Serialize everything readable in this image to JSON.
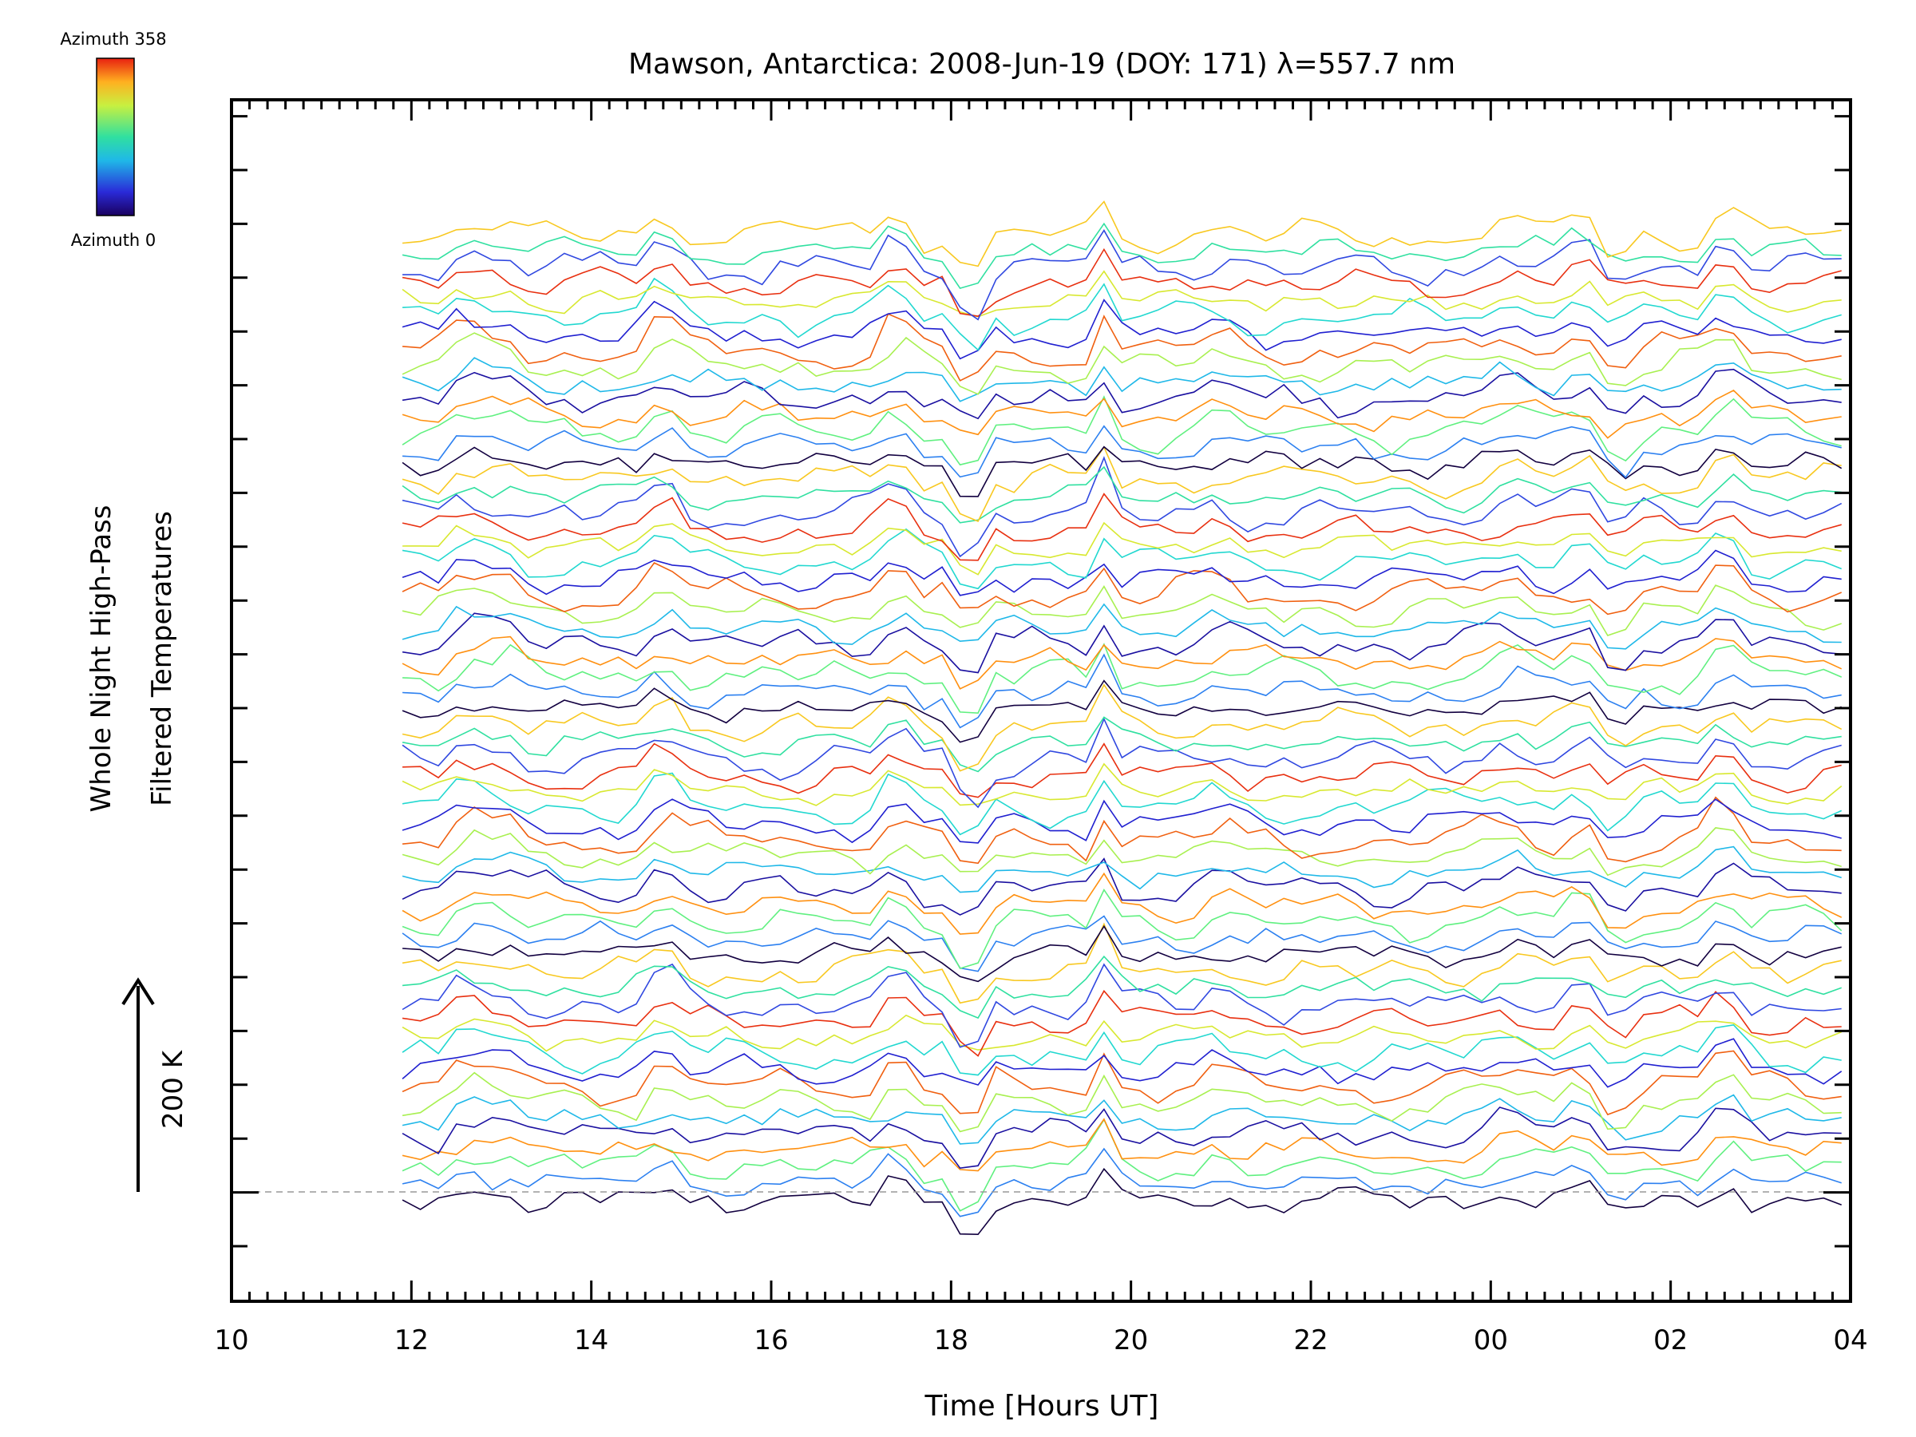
{
  "chart_data": {
    "type": "line",
    "title": "Mawson, Antarctica: 2008-Jun-19 (DOY: 171) λ=557.7 nm",
    "xlabel": "Time [Hours UT]",
    "ylabel_line1": "Whole Night High-Pass",
    "ylabel_line2": "Filtered Temperatures",
    "scale_label": "200 K",
    "x_tick_labels": [
      "10",
      "12",
      "14",
      "16",
      "18",
      "20",
      "22",
      "00",
      "02",
      "04"
    ],
    "x_tick_hours": [
      10,
      12,
      14,
      16,
      18,
      20,
      22,
      24,
      26,
      28
    ],
    "xlim": [
      10,
      28
    ],
    "x_start": 11.9,
    "x_end": 28,
    "x_step": 0.2,
    "colorbar": {
      "top_label": "Azimuth 358",
      "bottom_label": "Azimuth 0",
      "min": 0,
      "max": 358
    },
    "series_count": 60,
    "stacking": "vertically offset, one trace per azimuth direction, cycling through azimuth colours",
    "grid": false,
    "dashed_baseline": true
  }
}
